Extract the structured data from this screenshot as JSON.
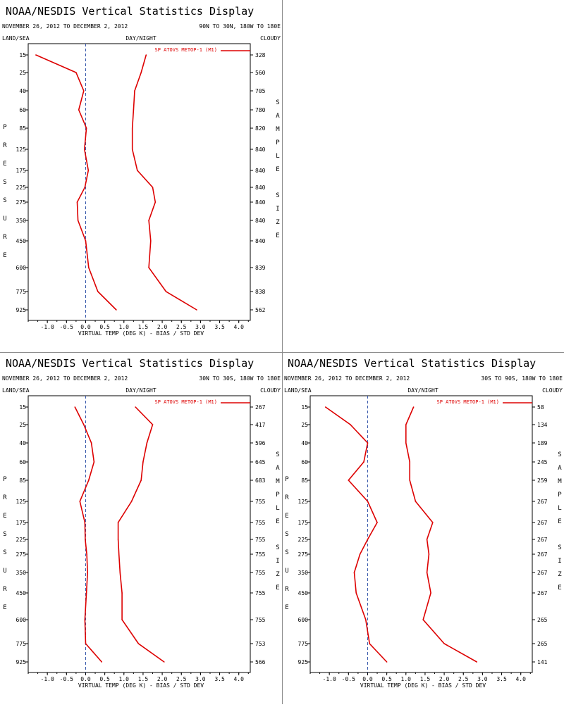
{
  "page": {
    "title": "NOAA/NESDIS Vertical Statistics Display",
    "date_range": "NOVEMBER 26, 2012 TO DECEMBER 2, 2012",
    "col_left": "LAND/SEA",
    "col_mid": "DAY/NIGHT",
    "col_right": "CLOUDY",
    "y_side_label": "PRESSURE",
    "right_side_label": "SAMPLE SIZE",
    "xlabel": "VIRTUAL TEMP (DEG K) - BIAS / STD DEV",
    "colors": {
      "series": "#dd0000",
      "zero_line": "#3355aa",
      "axis": "#000000"
    }
  },
  "chart_data": [
    {
      "type": "line",
      "region": "90N TO 30N, 180W TO 180E",
      "legend": "SP ATOVS METOP-1 (M1)",
      "legend_position": "top-right",
      "pressure_levels": [
        15,
        25,
        40,
        60,
        85,
        125,
        175,
        225,
        275,
        350,
        450,
        600,
        775,
        925
      ],
      "sample_size": [
        "328",
        "560",
        "705",
        "780",
        "820",
        "840",
        "840",
        "840",
        "840",
        "840",
        "840",
        "839",
        "838",
        "562"
      ],
      "xticks": [
        "-1.0",
        "-0.5",
        "0.0",
        "0.5",
        "1.0",
        "1.5",
        "2.0",
        "2.5",
        "3.0",
        "3.5",
        "4.0"
      ],
      "xlim": [
        -1.5,
        4.3
      ],
      "series": [
        {
          "role": "bias",
          "values": [
            -1.3,
            -0.25,
            -0.05,
            -0.18,
            0.02,
            -0.03,
            0.07,
            -0.02,
            -0.22,
            -0.2,
            0.0,
            0.08,
            0.32,
            0.8
          ]
        },
        {
          "role": "std_dev",
          "values": [
            1.58,
            1.45,
            1.28,
            1.25,
            1.22,
            1.22,
            1.35,
            1.75,
            1.82,
            1.65,
            1.7,
            1.65,
            2.1,
            2.9
          ]
        }
      ]
    },
    {
      "type": "line",
      "region": "30N TO 30S, 180W TO 180E",
      "legend": "SP ATOVS METOP-1 (M1)",
      "legend_position": "top-right",
      "pressure_levels": [
        15,
        25,
        40,
        60,
        85,
        125,
        175,
        225,
        275,
        350,
        450,
        600,
        775,
        925
      ],
      "sample_size": [
        "267",
        "417",
        "596",
        "645",
        "683",
        "755",
        "755",
        "755",
        "755",
        "755",
        "755",
        "755",
        "753",
        "566"
      ],
      "xticks": [
        "-1.0",
        "-0.5",
        "0.0",
        "0.5",
        "1.0",
        "1.5",
        "2.0",
        "2.5",
        "3.0",
        "3.5",
        "4.0"
      ],
      "xlim": [
        -1.5,
        4.3
      ],
      "series": [
        {
          "role": "bias",
          "values": [
            -0.28,
            -0.05,
            0.15,
            0.22,
            0.08,
            -0.15,
            -0.02,
            -0.01,
            0.03,
            0.05,
            0.02,
            -0.02,
            0.0,
            0.42
          ]
        },
        {
          "role": "std_dev",
          "values": [
            1.3,
            1.75,
            1.6,
            1.5,
            1.45,
            1.2,
            0.85,
            0.85,
            0.87,
            0.9,
            0.95,
            0.95,
            1.38,
            2.05
          ]
        }
      ]
    },
    {
      "type": "line",
      "region": "30S TO 90S, 180W TO 180E",
      "legend": "SP ATOVS METOP-1 (M1)",
      "legend_position": "top-right",
      "pressure_levels": [
        15,
        25,
        40,
        60,
        85,
        125,
        175,
        225,
        275,
        350,
        450,
        600,
        775,
        925
      ],
      "sample_size": [
        "58",
        "134",
        "189",
        "245",
        "259",
        "267",
        "267",
        "267",
        "267",
        "267",
        "267",
        "265",
        "265",
        "141"
      ],
      "xticks": [
        "-1.0",
        "-0.5",
        "0.0",
        "0.5",
        "1.0",
        "1.5",
        "2.0",
        "2.5",
        "3.0",
        "3.5",
        "4.0"
      ],
      "xlim": [
        -1.5,
        4.3
      ],
      "series": [
        {
          "role": "bias",
          "values": [
            -1.1,
            -0.45,
            0.0,
            -0.1,
            -0.5,
            0.0,
            0.25,
            0.0,
            -0.2,
            -0.35,
            -0.3,
            -0.05,
            0.05,
            0.5
          ]
        },
        {
          "role": "std_dev",
          "values": [
            1.2,
            1.0,
            1.0,
            1.1,
            1.1,
            1.25,
            1.7,
            1.55,
            1.6,
            1.55,
            1.65,
            1.45,
            2.0,
            2.85
          ]
        }
      ]
    }
  ]
}
